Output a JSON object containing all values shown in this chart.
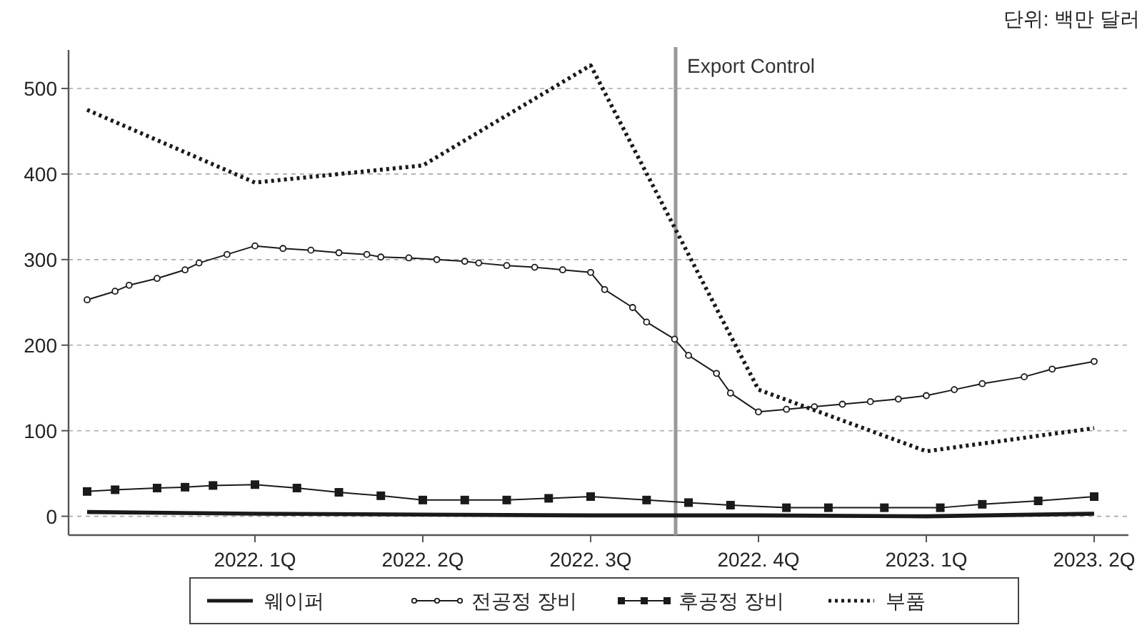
{
  "chart_data": {
    "type": "line",
    "annotations": [
      "단위: 백만 달러",
      "Export Control"
    ],
    "categories": [
      null,
      null,
      null,
      null,
      null,
      null,
      null,
      null,
      null,
      null,
      null,
      null,
      "2022. 1Q",
      null,
      null,
      null,
      null,
      null,
      null,
      null,
      null,
      null,
      null,
      null,
      "2022. 2Q",
      null,
      null,
      null,
      null,
      null,
      null,
      null,
      null,
      null,
      null,
      null,
      "2022. 3Q",
      null,
      null,
      null,
      null,
      null,
      null,
      null,
      null,
      null,
      null,
      null,
      "2022. 4Q",
      null,
      null,
      null,
      null,
      null,
      null,
      null,
      null,
      null,
      null,
      null,
      "2023. 1Q",
      null,
      null,
      null,
      null,
      null,
      null,
      null,
      null,
      null,
      null,
      null,
      "2023. 2Q"
    ],
    "ylim": [
      -22,
      545
    ],
    "yticks": [
      0,
      100,
      200,
      300,
      400,
      500
    ],
    "grid": "y",
    "legend": "bottom",
    "series": [
      {
        "name": "웨이퍼",
        "color": "#1a1a1a",
        "marker": "none",
        "line_style": "solid",
        "values": [
          5,
          null,
          null,
          null,
          null,
          null,
          null,
          null,
          null,
          null,
          null,
          null,
          3,
          null,
          null,
          null,
          null,
          null,
          null,
          null,
          null,
          null,
          null,
          null,
          2,
          null,
          null,
          null,
          null,
          null,
          null,
          null,
          null,
          null,
          null,
          null,
          1,
          null,
          null,
          null,
          null,
          null,
          null,
          null,
          null,
          null,
          null,
          null,
          1,
          null,
          null,
          null,
          null,
          null,
          null,
          null,
          null,
          null,
          null,
          null,
          0,
          null,
          null,
          null,
          null,
          null,
          null,
          null,
          null,
          null,
          null,
          null,
          3
        ]
      },
      {
        "name": "전공정 장비",
        "color": "#1a1a1a",
        "marker": "circle",
        "line_style": "solid",
        "values": [
          253,
          null,
          263,
          270,
          null,
          278,
          null,
          288,
          296,
          null,
          306,
          null,
          316,
          null,
          313,
          null,
          311,
          null,
          308,
          null,
          306,
          303,
          null,
          302,
          null,
          300,
          null,
          298,
          296,
          null,
          293,
          null,
          291,
          null,
          288,
          null,
          285,
          265,
          null,
          244,
          227,
          null,
          207,
          188,
          null,
          167,
          144,
          null,
          122,
          null,
          125,
          null,
          128,
          null,
          131,
          null,
          134,
          null,
          137,
          null,
          141,
          null,
          148,
          null,
          155,
          null,
          null,
          163,
          null,
          172,
          null,
          null,
          181
        ]
      },
      {
        "name": "후공정 장비",
        "color": "#1a1a1a",
        "marker": "square",
        "line_style": "solid",
        "values": [
          29,
          null,
          31,
          null,
          null,
          33,
          null,
          34,
          null,
          36,
          null,
          null,
          37,
          null,
          null,
          33,
          null,
          null,
          28,
          null,
          null,
          24,
          null,
          null,
          19,
          null,
          null,
          19,
          null,
          null,
          19,
          null,
          null,
          21,
          null,
          null,
          23,
          null,
          null,
          null,
          19,
          null,
          null,
          16,
          null,
          null,
          13,
          null,
          null,
          null,
          10,
          null,
          null,
          10,
          null,
          null,
          null,
          10,
          null,
          null,
          null,
          10,
          null,
          null,
          14,
          null,
          null,
          null,
          18,
          null,
          null,
          null,
          23
        ]
      },
      {
        "name": "부품",
        "color": "#1a1a1a",
        "marker": "none",
        "line_style": "dotted",
        "values": [
          475,
          null,
          null,
          null,
          null,
          null,
          null,
          null,
          null,
          null,
          null,
          null,
          390,
          null,
          null,
          null,
          null,
          null,
          null,
          null,
          null,
          null,
          null,
          null,
          410,
          null,
          null,
          null,
          null,
          null,
          null,
          null,
          null,
          null,
          null,
          null,
          527,
          null,
          null,
          null,
          null,
          null,
          null,
          null,
          null,
          null,
          null,
          null,
          148,
          null,
          null,
          null,
          null,
          null,
          null,
          null,
          null,
          null,
          null,
          null,
          76,
          null,
          null,
          null,
          null,
          null,
          null,
          null,
          null,
          null,
          null,
          null,
          103
        ]
      }
    ]
  }
}
